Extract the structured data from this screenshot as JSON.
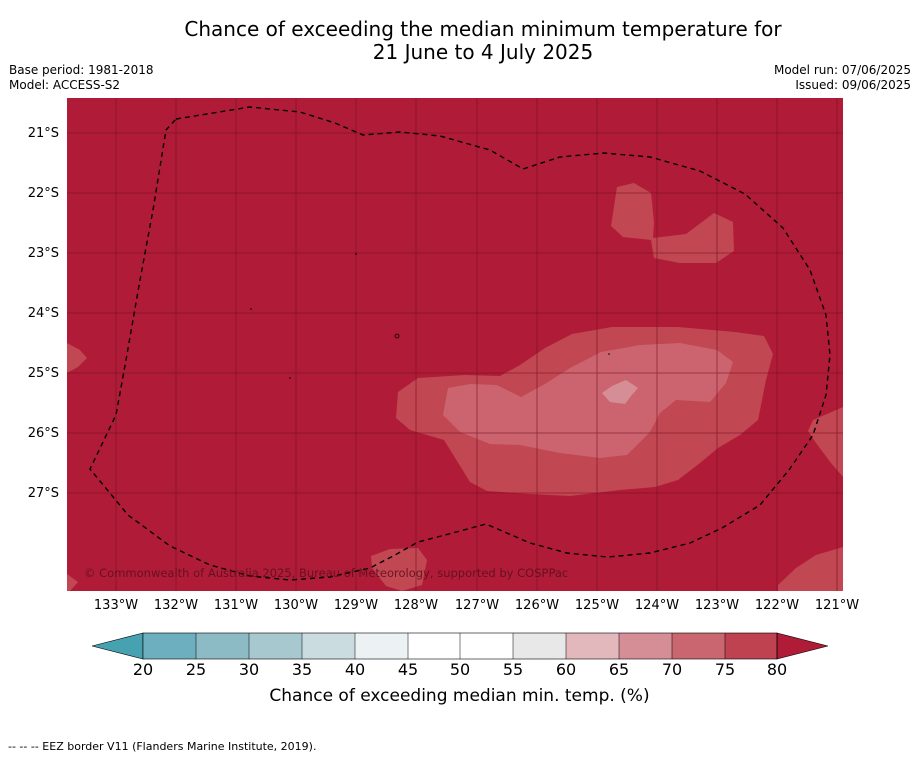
{
  "header": {
    "title_line1": "Chance of exceeding the median minimum temperature for",
    "title_line2": "21 June to 4 July 2025",
    "base_period": "Base period: 1981-2018",
    "model": "Model: ACCESS-S2",
    "model_run": "Model run: 07/06/2025",
    "issued": "Issued: 09/06/2025"
  },
  "map": {
    "copyright": "© Commonwealth of Australia 2025, Bureau of Meteorology, supported by COSPPac",
    "lat_labels": [
      "21°S",
      "22°S",
      "23°S",
      "24°S",
      "25°S",
      "26°S",
      "27°S"
    ],
    "lon_labels": [
      "133°W",
      "132°W",
      "131°W",
      "130°W",
      "129°W",
      "128°W",
      "127°W",
      "126°W",
      "125°W",
      "124°W",
      "123°W",
      "122°W",
      "121°W"
    ],
    "colors": {
      "above_80": "#b01c37",
      "band_75_80": "#be424f",
      "band_70_75": "#c85c67",
      "band_65_70": "#d6919a",
      "eez_line": "#000000"
    }
  },
  "colorbar": {
    "ticks": [
      "20",
      "25",
      "30",
      "35",
      "40",
      "45",
      "50",
      "55",
      "60",
      "65",
      "70",
      "75",
      "80"
    ],
    "colors": [
      "#46a1b1",
      "#6eafbf",
      "#8cbbc6",
      "#a8c8cf",
      "#cbdce0",
      "#ecf2f3",
      "#ffffff",
      "#ffffff",
      "#e8e8e8",
      "#e3b8bd",
      "#d68e96",
      "#c96670",
      "#be424f",
      "#b01c37"
    ],
    "label": "Chance of exceeding median min. temp. (%)"
  },
  "footnote": "--  --  -- EEZ border V11 (Flanders Marine Institute, 2019)."
}
